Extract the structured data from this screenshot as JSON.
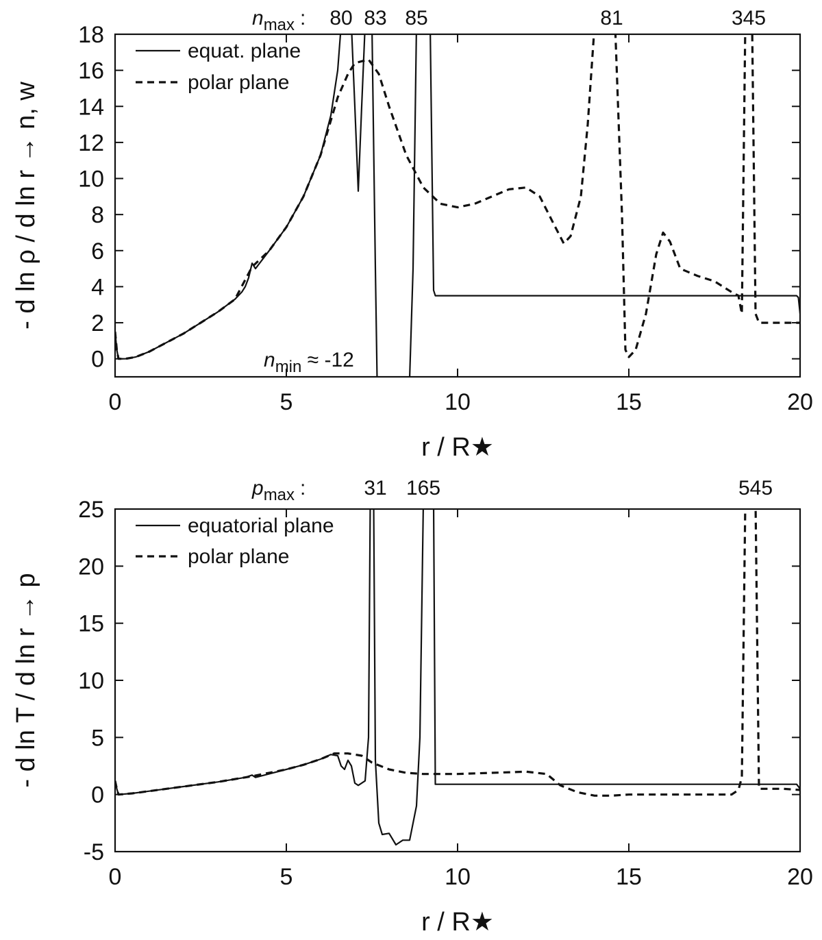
{
  "chart_data": [
    {
      "type": "line",
      "xlabel": "r / R★",
      "ylabel": "- d ln ρ / d ln r → n, w",
      "xlim": [
        0,
        20
      ],
      "ylim": [
        -1,
        18
      ],
      "xticks": [
        "0",
        "5",
        "10",
        "15",
        "20"
      ],
      "yticks": [
        "0",
        "2",
        "4",
        "6",
        "8",
        "10",
        "12",
        "14",
        "16",
        "18"
      ],
      "legend_position": "top-left",
      "top_annotation_label": "n",
      "top_annotation_sub": "max",
      "top_annotation_colon": ":",
      "peak_labels": [
        {
          "text": "80",
          "x": 6.6
        },
        {
          "text": "83",
          "x": 7.6
        },
        {
          "text": "85",
          "x": 8.8
        },
        {
          "text": "81",
          "x": 14.5
        },
        {
          "text": "345",
          "x": 18.5
        }
      ],
      "inner_annotation_label": "n",
      "inner_annotation_sub": "min",
      "inner_annotation_value": " ≈ -12",
      "series": [
        {
          "name": "equat. plane",
          "style": "solid",
          "points": [
            [
              0.0,
              1.5
            ],
            [
              0.05,
              0.5
            ],
            [
              0.1,
              0.0
            ],
            [
              0.3,
              0.0
            ],
            [
              0.6,
              0.1
            ],
            [
              1.0,
              0.4
            ],
            [
              2.0,
              1.4
            ],
            [
              3.0,
              2.6
            ],
            [
              3.5,
              3.3
            ],
            [
              3.7,
              3.7
            ],
            [
              3.8,
              4.0
            ],
            [
              3.9,
              4.5
            ],
            [
              4.0,
              5.3
            ],
            [
              4.1,
              5.0
            ],
            [
              4.3,
              5.5
            ],
            [
              4.5,
              6.0
            ],
            [
              5.0,
              7.3
            ],
            [
              5.5,
              9.0
            ],
            [
              6.0,
              11.3
            ],
            [
              6.3,
              13.5
            ],
            [
              6.5,
              16.0
            ],
            [
              6.6,
              18.5
            ],
            [
              6.9,
              18.5
            ],
            [
              7.0,
              14.0
            ],
            [
              7.1,
              9.3
            ],
            [
              7.2,
              14.0
            ],
            [
              7.3,
              18.5
            ],
            [
              7.5,
              18.5
            ],
            [
              7.6,
              5.0
            ],
            [
              7.65,
              -1.1
            ],
            [
              8.6,
              -1.1
            ],
            [
              8.7,
              5.0
            ],
            [
              8.8,
              18.5
            ],
            [
              9.2,
              18.5
            ],
            [
              9.3,
              3.8
            ],
            [
              9.35,
              3.5
            ],
            [
              19.9,
              3.5
            ],
            [
              19.95,
              3.4
            ],
            [
              20.0,
              2.5
            ]
          ]
        },
        {
          "name": "polar plane",
          "style": "dashed",
          "points": [
            [
              0.0,
              1.5
            ],
            [
              0.05,
              0.5
            ],
            [
              0.1,
              0.0
            ],
            [
              0.3,
              0.0
            ],
            [
              0.6,
              0.1
            ],
            [
              1.0,
              0.4
            ],
            [
              2.0,
              1.4
            ],
            [
              3.0,
              2.6
            ],
            [
              3.5,
              3.3
            ],
            [
              4.0,
              5.1
            ],
            [
              4.5,
              6.0
            ],
            [
              5.0,
              7.3
            ],
            [
              5.5,
              9.0
            ],
            [
              6.0,
              11.3
            ],
            [
              6.5,
              14.5
            ],
            [
              6.8,
              15.8
            ],
            [
              7.0,
              16.4
            ],
            [
              7.4,
              16.6
            ],
            [
              7.7,
              15.8
            ],
            [
              8.0,
              14.0
            ],
            [
              8.5,
              11.3
            ],
            [
              9.0,
              9.5
            ],
            [
              9.5,
              8.6
            ],
            [
              10.0,
              8.4
            ],
            [
              10.5,
              8.6
            ],
            [
              11.0,
              9.0
            ],
            [
              11.5,
              9.4
            ],
            [
              12.0,
              9.5
            ],
            [
              12.4,
              9.0
            ],
            [
              12.8,
              7.5
            ],
            [
              13.1,
              6.4
            ],
            [
              13.3,
              6.8
            ],
            [
              13.6,
              9.0
            ],
            [
              13.8,
              13.0
            ],
            [
              14.0,
              18.5
            ],
            [
              14.6,
              18.5
            ],
            [
              14.8,
              8.0
            ],
            [
              14.9,
              0.5
            ],
            [
              15.0,
              0.1
            ],
            [
              15.2,
              0.5
            ],
            [
              15.5,
              2.5
            ],
            [
              15.8,
              5.8
            ],
            [
              16.0,
              7.0
            ],
            [
              16.2,
              6.5
            ],
            [
              16.5,
              5.0
            ],
            [
              17.0,
              4.6
            ],
            [
              17.5,
              4.3
            ],
            [
              18.0,
              3.7
            ],
            [
              18.2,
              3.5
            ],
            [
              18.3,
              2.5
            ],
            [
              18.4,
              18.5
            ],
            [
              18.6,
              18.5
            ],
            [
              18.7,
              2.5
            ],
            [
              18.8,
              2.0
            ],
            [
              19.8,
              2.0
            ],
            [
              20.0,
              2.0
            ]
          ]
        }
      ]
    },
    {
      "type": "line",
      "xlabel": "r / R★",
      "ylabel": "- d ln T / d ln r → p",
      "xlim": [
        0,
        20
      ],
      "ylim": [
        -5,
        25
      ],
      "xticks": [
        "0",
        "5",
        "10",
        "15",
        "20"
      ],
      "yticks": [
        "-5",
        "0",
        "5",
        "10",
        "15",
        "20",
        "25"
      ],
      "legend_position": "top-left",
      "top_annotation_label": "p",
      "top_annotation_sub": "max",
      "top_annotation_colon": ":",
      "peak_labels": [
        {
          "text": "31",
          "x": 7.6
        },
        {
          "text": "165",
          "x": 9.0
        },
        {
          "text": "545",
          "x": 18.7
        }
      ],
      "series": [
        {
          "name": "equatorial plane",
          "style": "solid",
          "points": [
            [
              0.0,
              1.2
            ],
            [
              0.05,
              0.5
            ],
            [
              0.1,
              0.0
            ],
            [
              0.5,
              0.1
            ],
            [
              1.0,
              0.3
            ],
            [
              2.0,
              0.7
            ],
            [
              3.0,
              1.1
            ],
            [
              3.8,
              1.5
            ],
            [
              4.0,
              1.7
            ],
            [
              4.1,
              1.5
            ],
            [
              5.0,
              2.2
            ],
            [
              5.5,
              2.6
            ],
            [
              6.0,
              3.1
            ],
            [
              6.3,
              3.5
            ],
            [
              6.5,
              3.4
            ],
            [
              6.6,
              2.5
            ],
            [
              6.7,
              2.2
            ],
            [
              6.8,
              3.0
            ],
            [
              6.9,
              2.5
            ],
            [
              7.0,
              1.0
            ],
            [
              7.1,
              0.8
            ],
            [
              7.3,
              1.2
            ],
            [
              7.4,
              5.0
            ],
            [
              7.45,
              25.5
            ],
            [
              7.55,
              25.5
            ],
            [
              7.6,
              3.0
            ],
            [
              7.7,
              -2.5
            ],
            [
              7.8,
              -3.5
            ],
            [
              8.0,
              -3.4
            ],
            [
              8.2,
              -4.4
            ],
            [
              8.4,
              -4.0
            ],
            [
              8.6,
              -4.0
            ],
            [
              8.8,
              -1.0
            ],
            [
              8.9,
              5.0
            ],
            [
              9.0,
              25.5
            ],
            [
              9.3,
              25.5
            ],
            [
              9.35,
              0.9
            ],
            [
              19.9,
              0.9
            ],
            [
              20.0,
              0.5
            ]
          ]
        },
        {
          "name": "polar plane",
          "style": "dashed",
          "points": [
            [
              0.0,
              1.2
            ],
            [
              0.05,
              0.5
            ],
            [
              0.1,
              0.0
            ],
            [
              0.5,
              0.1
            ],
            [
              1.0,
              0.3
            ],
            [
              2.0,
              0.7
            ],
            [
              3.0,
              1.1
            ],
            [
              4.0,
              1.6
            ],
            [
              5.0,
              2.2
            ],
            [
              5.5,
              2.6
            ],
            [
              6.0,
              3.1
            ],
            [
              6.4,
              3.6
            ],
            [
              6.8,
              3.6
            ],
            [
              7.2,
              3.4
            ],
            [
              7.5,
              2.8
            ],
            [
              8.0,
              2.2
            ],
            [
              8.5,
              1.9
            ],
            [
              9.0,
              1.8
            ],
            [
              10.0,
              1.8
            ],
            [
              11.0,
              1.9
            ],
            [
              12.0,
              2.0
            ],
            [
              12.6,
              1.8
            ],
            [
              13.0,
              0.8
            ],
            [
              13.5,
              0.2
            ],
            [
              14.0,
              -0.1
            ],
            [
              14.5,
              -0.1
            ],
            [
              15.0,
              0.0
            ],
            [
              16.0,
              0.0
            ],
            [
              17.0,
              0.0
            ],
            [
              18.0,
              0.0
            ],
            [
              18.2,
              0.4
            ],
            [
              18.3,
              1.5
            ],
            [
              18.4,
              25.5
            ],
            [
              18.7,
              25.5
            ],
            [
              18.8,
              0.5
            ],
            [
              19.5,
              0.5
            ],
            [
              20.0,
              0.4
            ]
          ]
        }
      ]
    }
  ]
}
